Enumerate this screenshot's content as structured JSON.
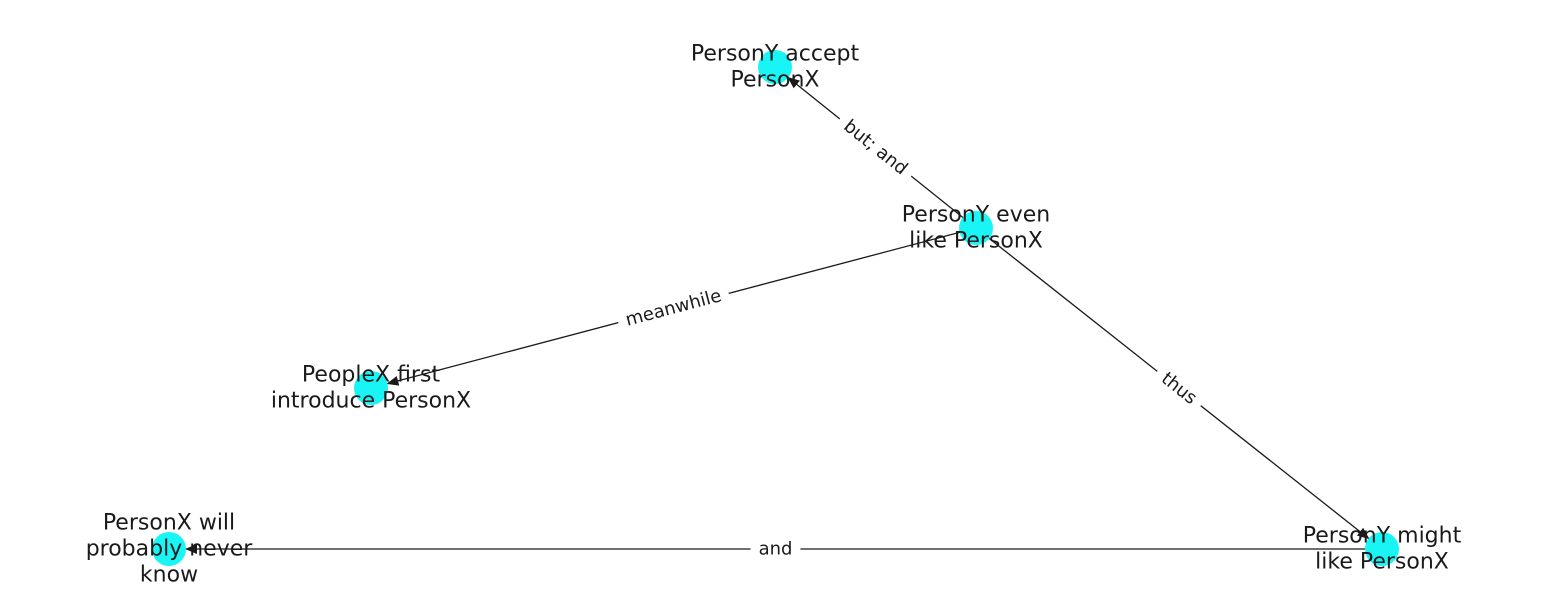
{
  "colors": {
    "node": "#19f5f5",
    "edge": "#1a1a1a",
    "background": "#ffffff"
  },
  "nodes": [
    {
      "id": "n1",
      "lines": [
        "PersonY accept",
        "PersonX"
      ]
    },
    {
      "id": "n2",
      "lines": [
        "PersonY even",
        "like PersonX"
      ]
    },
    {
      "id": "n3",
      "lines": [
        "PeopleX first",
        "introduce PersonX"
      ]
    },
    {
      "id": "n4",
      "lines": [
        "PersonX will",
        "probably never",
        "know"
      ]
    },
    {
      "id": "n5",
      "lines": [
        "PersonY might",
        "like PersonX"
      ]
    }
  ],
  "edges": [
    {
      "from": "n2",
      "to": "n1",
      "label": "but;  and"
    },
    {
      "from": "n2",
      "to": "n3",
      "label": "meanwhile"
    },
    {
      "from": "n2",
      "to": "n5",
      "label": "thus"
    },
    {
      "from": "n5",
      "to": "n4",
      "label": "and"
    }
  ]
}
